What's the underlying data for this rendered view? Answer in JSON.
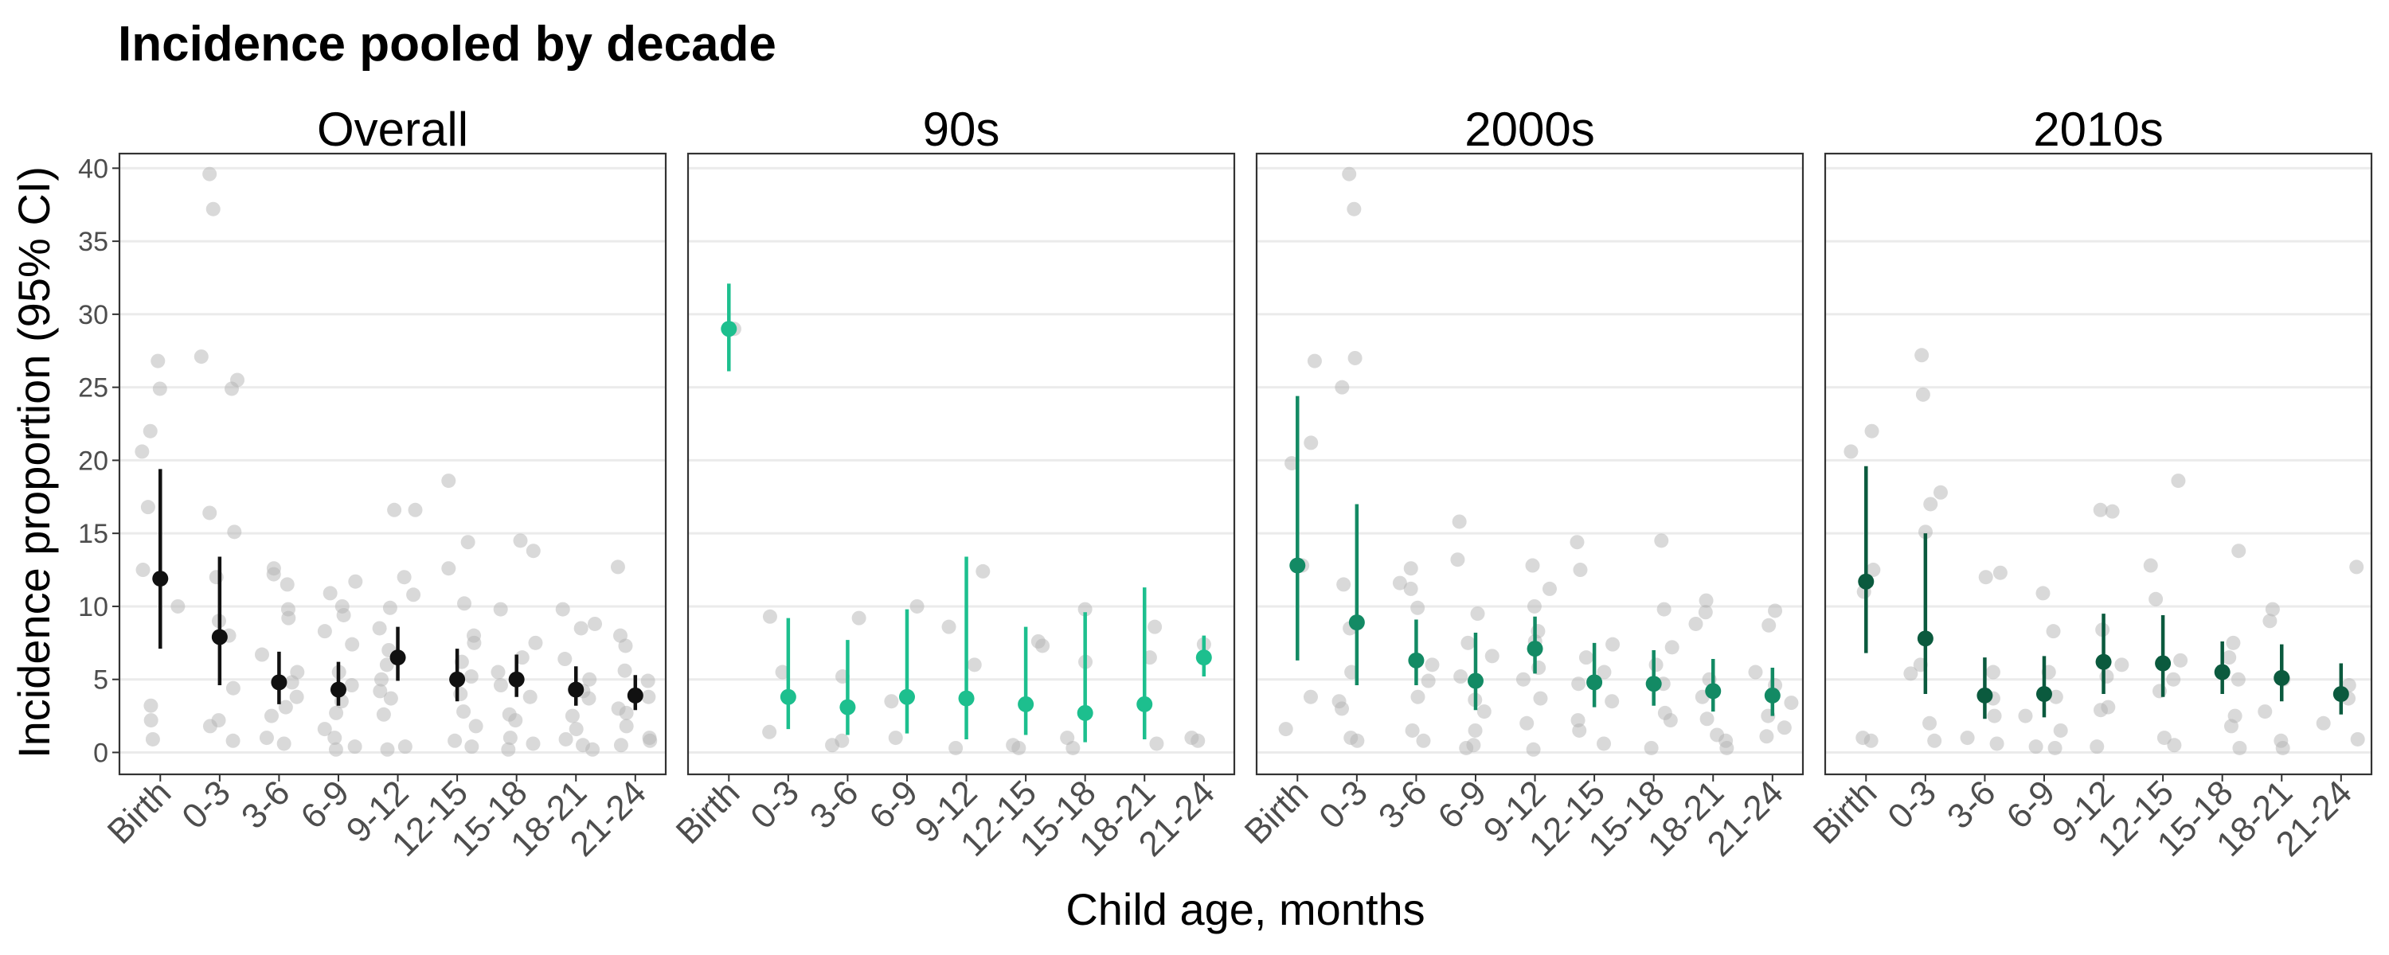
{
  "chart_data": {
    "type": "scatter",
    "title": "Incidence pooled by decade",
    "xlabel": "Child age, months",
    "ylabel": "Incidence proportion (95% CI)",
    "ylim": [
      -1.5,
      41
    ],
    "yticks": [
      0,
      5,
      10,
      15,
      20,
      25,
      30,
      35,
      40
    ],
    "grid": "horizontal",
    "categories": [
      "Birth",
      "0-3",
      "3-6",
      "6-9",
      "9-12",
      "12-15",
      "15-18",
      "18-21",
      "21-24"
    ],
    "colors": {
      "Overall": "#111111",
      "90s": "#1dbf8e",
      "2000s": "#138a64",
      "2010s": "#0b5a3e",
      "study_points": "#b3b3b3"
    },
    "panels": [
      {
        "name": "Overall",
        "estimates": [
          {
            "x": "Birth",
            "est": 11.9,
            "lo": 7.1,
            "hi": 19.4
          },
          {
            "x": "0-3",
            "est": 7.9,
            "lo": 4.6,
            "hi": 13.4
          },
          {
            "x": "3-6",
            "est": 4.8,
            "lo": 3.3,
            "hi": 6.9
          },
          {
            "x": "6-9",
            "est": 4.3,
            "lo": 3.2,
            "hi": 6.2
          },
          {
            "x": "9-12",
            "est": 6.5,
            "lo": 4.9,
            "hi": 8.6
          },
          {
            "x": "12-15",
            "est": 5.0,
            "lo": 3.5,
            "hi": 7.1
          },
          {
            "x": "15-18",
            "est": 5.0,
            "lo": 3.8,
            "hi": 6.7
          },
          {
            "x": "18-21",
            "est": 4.3,
            "lo": 3.2,
            "hi": 5.9
          },
          {
            "x": "21-24",
            "est": 3.9,
            "lo": 2.9,
            "hi": 5.3
          }
        ],
        "studies": [
          {
            "x": "Birth",
            "values": [
              26.8,
              24.9,
              22.0,
              20.6,
              16.8,
              12.5,
              10.0,
              3.2,
              2.2,
              0.9
            ]
          },
          {
            "x": "0-3",
            "values": [
              39.6,
              37.2,
              27.1,
              25.5,
              24.9,
              16.4,
              15.1,
              12.0,
              9.0,
              8.0,
              4.4,
              2.2,
              1.8,
              0.8
            ]
          },
          {
            "x": "3-6",
            "values": [
              12.6,
              12.2,
              11.5,
              9.8,
              9.2,
              6.7,
              5.5,
              4.8,
              3.8,
              3.1,
              2.5,
              1.0,
              0.6
            ]
          },
          {
            "x": "6-9",
            "values": [
              11.7,
              10.9,
              10.0,
              9.4,
              8.3,
              7.4,
              5.5,
              4.6,
              3.5,
              2.7,
              1.6,
              1.0,
              0.4,
              0.2
            ]
          },
          {
            "x": "9-12",
            "values": [
              16.6,
              16.6,
              12.0,
              10.8,
              9.9,
              8.5,
              7.0,
              6.0,
              5.0,
              4.2,
              3.7,
              2.6,
              0.4,
              0.2
            ]
          },
          {
            "x": "12-15",
            "values": [
              18.6,
              14.4,
              12.6,
              10.2,
              8.0,
              7.5,
              6.2,
              5.2,
              4.0,
              2.8,
              1.8,
              0.8,
              0.4
            ]
          },
          {
            "x": "15-18",
            "values": [
              14.5,
              13.8,
              9.8,
              7.5,
              6.5,
              5.5,
              4.6,
              3.8,
              2.6,
              2.2,
              1.0,
              0.6,
              0.2
            ]
          },
          {
            "x": "18-21",
            "values": [
              9.8,
              8.8,
              8.5,
              6.4,
              5.0,
              4.2,
              3.7,
              2.5,
              1.6,
              0.9,
              0.5,
              0.2
            ]
          },
          {
            "x": "21-24",
            "values": [
              12.7,
              8.0,
              7.3,
              5.6,
              4.9,
              3.8,
              3.0,
              2.7,
              1.8,
              1.0,
              0.8,
              0.5
            ]
          }
        ]
      },
      {
        "name": "90s",
        "estimates": [
          {
            "x": "Birth",
            "est": 29.0,
            "lo": 26.1,
            "hi": 32.1
          },
          {
            "x": "0-3",
            "est": 3.8,
            "lo": 1.6,
            "hi": 9.2
          },
          {
            "x": "3-6",
            "est": 3.1,
            "lo": 1.2,
            "hi": 7.7
          },
          {
            "x": "6-9",
            "est": 3.8,
            "lo": 1.3,
            "hi": 9.8
          },
          {
            "x": "9-12",
            "est": 3.7,
            "lo": 0.9,
            "hi": 13.4
          },
          {
            "x": "12-15",
            "est": 3.3,
            "lo": 1.2,
            "hi": 8.6
          },
          {
            "x": "15-18",
            "est": 2.7,
            "lo": 0.7,
            "hi": 9.6
          },
          {
            "x": "18-21",
            "est": 3.3,
            "lo": 0.9,
            "hi": 11.3
          },
          {
            "x": "21-24",
            "est": 6.5,
            "lo": 5.2,
            "hi": 8.0
          }
        ],
        "studies": [
          {
            "x": "Birth",
            "values": [
              29.0
            ]
          },
          {
            "x": "0-3",
            "values": [
              9.3,
              5.5,
              1.4
            ]
          },
          {
            "x": "3-6",
            "values": [
              9.2,
              5.2,
              0.8,
              0.5
            ]
          },
          {
            "x": "6-9",
            "values": [
              10.0,
              3.5,
              1.0
            ]
          },
          {
            "x": "9-12",
            "values": [
              12.4,
              8.6,
              6.0,
              0.3
            ]
          },
          {
            "x": "12-15",
            "values": [
              7.6,
              7.3,
              0.5,
              0.3
            ]
          },
          {
            "x": "15-18",
            "values": [
              9.8,
              6.2,
              1.0,
              0.3
            ]
          },
          {
            "x": "18-21",
            "values": [
              8.6,
              6.5,
              0.6
            ]
          },
          {
            "x": "21-24",
            "values": [
              7.4,
              1.0,
              0.8
            ]
          }
        ]
      },
      {
        "name": "2000s",
        "estimates": [
          {
            "x": "Birth",
            "est": 12.8,
            "lo": 6.3,
            "hi": 24.4
          },
          {
            "x": "0-3",
            "est": 8.9,
            "lo": 4.6,
            "hi": 17.0
          },
          {
            "x": "3-6",
            "est": 6.3,
            "lo": 4.6,
            "hi": 9.1
          },
          {
            "x": "6-9",
            "est": 4.9,
            "lo": 2.9,
            "hi": 8.2
          },
          {
            "x": "9-12",
            "est": 7.1,
            "lo": 5.4,
            "hi": 9.3
          },
          {
            "x": "12-15",
            "est": 4.8,
            "lo": 3.1,
            "hi": 7.5
          },
          {
            "x": "15-18",
            "est": 4.7,
            "lo": 3.2,
            "hi": 7.0
          },
          {
            "x": "18-21",
            "est": 4.2,
            "lo": 2.8,
            "hi": 6.4
          },
          {
            "x": "21-24",
            "est": 3.9,
            "lo": 2.5,
            "hi": 5.8
          }
        ],
        "studies": [
          {
            "x": "Birth",
            "values": [
              26.8,
              21.2,
              19.8,
              12.8,
              3.8,
              1.6
            ]
          },
          {
            "x": "0-3",
            "values": [
              39.6,
              37.2,
              27.0,
              25.0,
              11.5,
              8.5,
              5.5,
              3.5,
              3.0,
              1.0,
              0.8
            ]
          },
          {
            "x": "3-6",
            "values": [
              12.6,
              11.6,
              11.2,
              9.9,
              6.0,
              4.9,
              3.8,
              1.5,
              0.8
            ]
          },
          {
            "x": "6-9",
            "values": [
              15.8,
              13.2,
              9.5,
              7.5,
              6.6,
              5.2,
              3.6,
              2.8,
              1.5,
              0.5,
              0.3
            ]
          },
          {
            "x": "9-12",
            "values": [
              12.8,
              11.2,
              10.0,
              8.3,
              7.6,
              5.8,
              5.0,
              3.7,
              2.0,
              0.2
            ]
          },
          {
            "x": "12-15",
            "values": [
              14.4,
              12.5,
              7.4,
              6.5,
              5.5,
              4.7,
              3.5,
              2.2,
              1.5,
              0.6
            ]
          },
          {
            "x": "15-18",
            "values": [
              14.5,
              9.8,
              7.2,
              6.0,
              4.7,
              2.7,
              2.2,
              0.3
            ]
          },
          {
            "x": "18-21",
            "values": [
              10.4,
              9.6,
              8.8,
              5.0,
              3.8,
              2.3,
              1.2,
              0.8,
              0.3
            ]
          },
          {
            "x": "21-24",
            "values": [
              9.7,
              8.7,
              5.5,
              4.6,
              3.4,
              2.5,
              1.7,
              1.1
            ]
          }
        ]
      },
      {
        "name": "2010s",
        "estimates": [
          {
            "x": "Birth",
            "est": 11.7,
            "lo": 6.8,
            "hi": 19.6
          },
          {
            "x": "0-3",
            "est": 7.8,
            "lo": 4.0,
            "hi": 15.0
          },
          {
            "x": "3-6",
            "est": 3.9,
            "lo": 2.3,
            "hi": 6.5
          },
          {
            "x": "6-9",
            "est": 4.0,
            "lo": 2.4,
            "hi": 6.6
          },
          {
            "x": "9-12",
            "est": 6.2,
            "lo": 4.0,
            "hi": 9.5
          },
          {
            "x": "12-15",
            "est": 6.1,
            "lo": 3.8,
            "hi": 9.4
          },
          {
            "x": "15-18",
            "est": 5.5,
            "lo": 4.0,
            "hi": 7.6
          },
          {
            "x": "18-21",
            "est": 5.1,
            "lo": 3.5,
            "hi": 7.4
          },
          {
            "x": "21-24",
            "est": 4.0,
            "lo": 2.6,
            "hi": 6.1
          }
        ],
        "studies": [
          {
            "x": "Birth",
            "values": [
              22.0,
              20.6,
              12.5,
              11.0,
              1.0,
              0.8
            ]
          },
          {
            "x": "0-3",
            "values": [
              27.2,
              24.5,
              17.8,
              17.0,
              15.1,
              6.0,
              5.4,
              2.0,
              0.8
            ]
          },
          {
            "x": "3-6",
            "values": [
              12.3,
              12.0,
              5.5,
              3.7,
              2.5,
              1.0,
              0.6
            ]
          },
          {
            "x": "6-9",
            "values": [
              10.9,
              8.3,
              5.5,
              3.8,
              2.5,
              1.5,
              0.4,
              0.3
            ]
          },
          {
            "x": "9-12",
            "values": [
              16.6,
              16.5,
              8.4,
              6.0,
              5.2,
              3.1,
              2.9,
              0.4
            ]
          },
          {
            "x": "12-15",
            "values": [
              18.6,
              12.8,
              10.5,
              6.3,
              5.0,
              4.2,
              1.0,
              0.5
            ]
          },
          {
            "x": "15-18",
            "values": [
              13.8,
              7.5,
              6.5,
              5.0,
              2.5,
              1.8,
              0.3
            ]
          },
          {
            "x": "18-21",
            "values": [
              9.8,
              9.0,
              5.0,
              2.8,
              0.8,
              0.3
            ]
          },
          {
            "x": "21-24",
            "values": [
              12.7,
              4.6,
              3.7,
              2.0,
              0.9
            ]
          }
        ]
      }
    ]
  }
}
